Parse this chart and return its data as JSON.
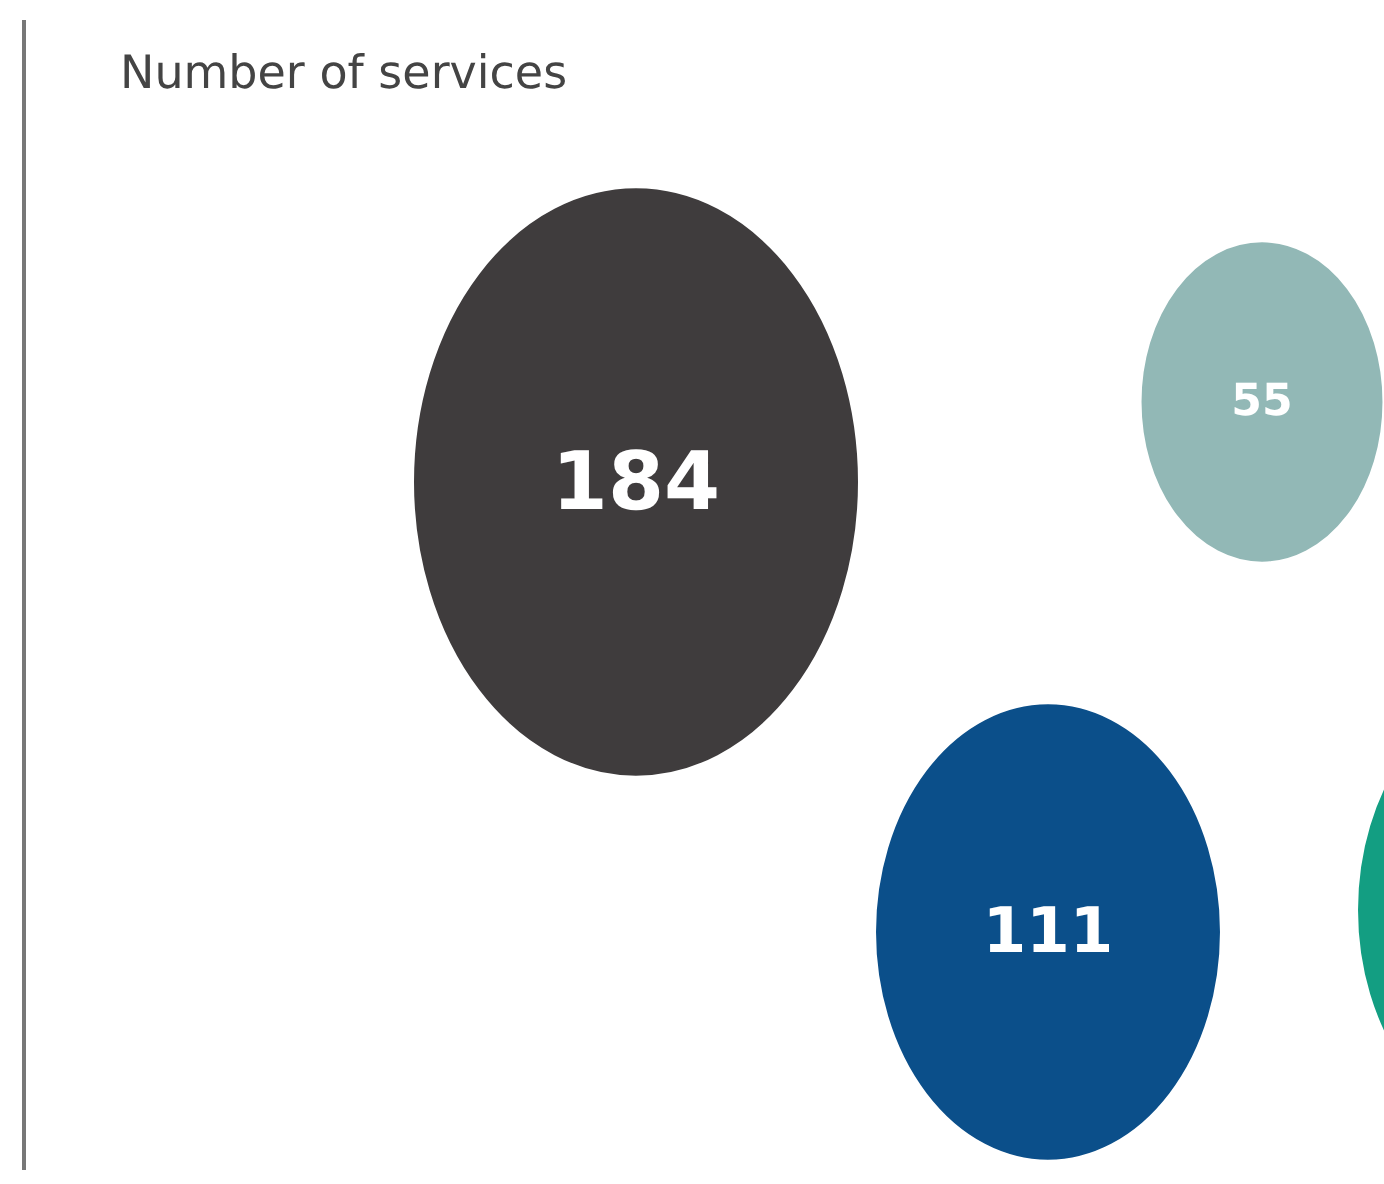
{
  "chart_data": {
    "type": "other",
    "title": "Number of services",
    "categories": [
      null,
      null,
      null,
      null
    ],
    "values": [
      184,
      55,
      111,
      null
    ],
    "colors": [
      "#3f3c3d",
      "#92b8b6",
      "#0b4f8a",
      "#139e82"
    ],
    "data_labels": true
  }
}
